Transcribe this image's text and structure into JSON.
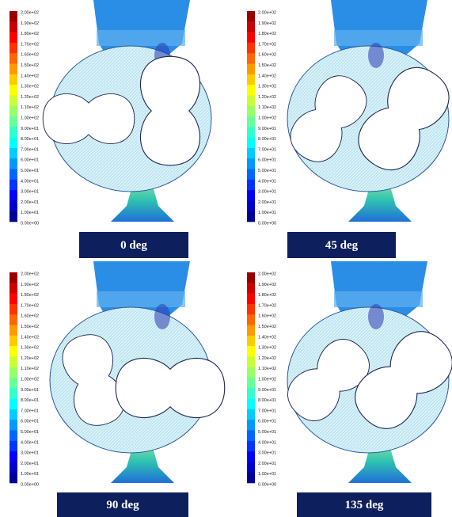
{
  "colorbar": {
    "labels": [
      "2.00e+02",
      "1.90e+02",
      "1.80e+02",
      "1.70e+02",
      "1.60e+02",
      "1.50e+02",
      "1.40e+02",
      "1.30e+02",
      "1.20e+02",
      "1.10e+02",
      "1.00e+02",
      "9.00e+01",
      "8.00e+01",
      "7.00e+01",
      "6.00e+01",
      "5.00e+01",
      "4.00e+01",
      "3.00e+01",
      "2.00e+01",
      "1.00e+01",
      "0.00e+00"
    ]
  },
  "panels": [
    {
      "label": "0 deg"
    },
    {
      "label": "45 deg"
    },
    {
      "label": "90 deg"
    },
    {
      "label": "135 deg"
    }
  ]
}
